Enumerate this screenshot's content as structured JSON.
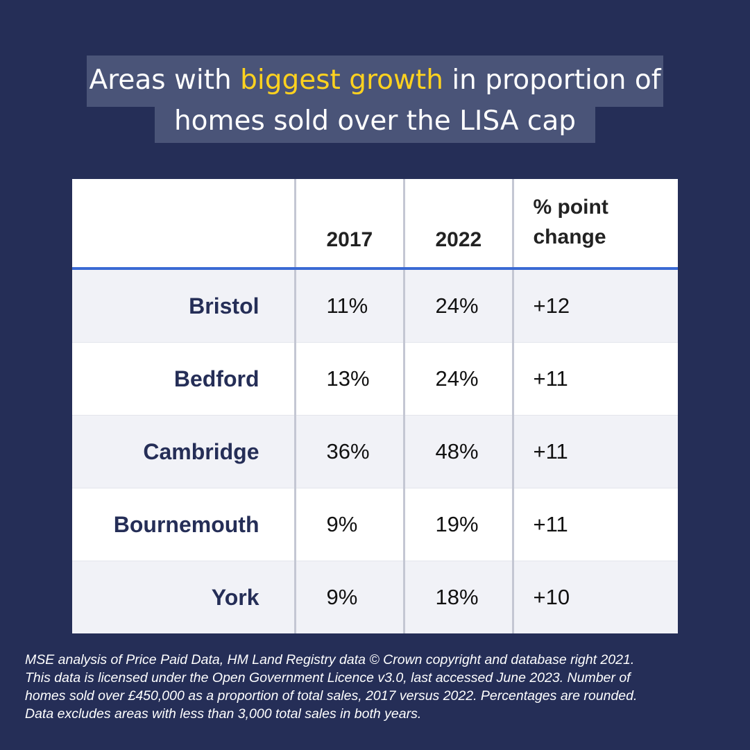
{
  "title": {
    "line1_before": "Areas with ",
    "line1_highlight": "biggest growth",
    "line1_after": " in proportion of",
    "line2": "homes sold over the LISA cap",
    "highlight_color": "#ffd21f"
  },
  "colors": {
    "background": "#252e57",
    "header_rule": "#3a6ad4",
    "area_text": "#252e57"
  },
  "chart_data": {
    "type": "table",
    "columns": [
      "",
      "2017",
      "2022",
      "% point change"
    ],
    "rows": [
      {
        "area": "Bristol",
        "y2017": "11%",
        "y2022": "24%",
        "change": "+12"
      },
      {
        "area": "Bedford",
        "y2017": "13%",
        "y2022": "24%",
        "change": "+11"
      },
      {
        "area": "Cambridge",
        "y2017": "36%",
        "y2022": "48%",
        "change": "+11"
      },
      {
        "area": "Bournemouth",
        "y2017": "9%",
        "y2022": "19%",
        "change": "+11"
      },
      {
        "area": "York",
        "y2017": "9%",
        "y2022": "18%",
        "change": "+10"
      }
    ]
  },
  "table": {
    "header": {
      "col1": "2017",
      "col2": "2022",
      "col3_line1": "% point",
      "col3_line2": "change"
    }
  },
  "footnote": {
    "line1": "MSE analysis of Price Paid Data, HM Land Registry data © Crown copyright and database right 2021.",
    "line2": "This data is licensed under the Open Government Licence v3.0, last accessed June 2023. Number of",
    "line3": "homes sold over £450,000 as a proportion of total sales, 2017 versus 2022. Percentages are rounded.",
    "line4": "Data excludes areas with less than 3,000 total sales in both years."
  }
}
